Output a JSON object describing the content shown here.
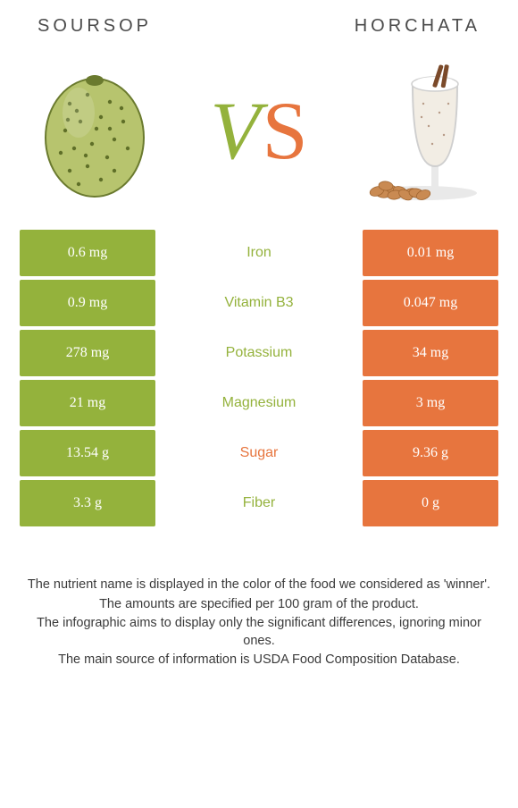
{
  "left_title": "SOURSOP",
  "right_title": "HORCHATA",
  "vs_v": "V",
  "vs_s": "S",
  "colors": {
    "left_bg": "#94b23c",
    "right_bg": "#e7753e",
    "left_text": "#ffffff",
    "right_text": "#ffffff",
    "mid_win_left": "#94b23c",
    "mid_win_right": "#e7753e",
    "v_color": "#94b23c",
    "s_color": "#e7753e",
    "title_color": "#4a4a4a",
    "notes_color": "#3a3a3a"
  },
  "rows": [
    {
      "left": "0.6 mg",
      "label": "Iron",
      "right": "0.01 mg",
      "winner": "left"
    },
    {
      "left": "0.9 mg",
      "label": "Vitamin B3",
      "right": "0.047 mg",
      "winner": "left"
    },
    {
      "left": "278 mg",
      "label": "Potassium",
      "right": "34 mg",
      "winner": "left"
    },
    {
      "left": "21 mg",
      "label": "Magnesium",
      "right": "3 mg",
      "winner": "left"
    },
    {
      "left": "13.54 g",
      "label": "Sugar",
      "right": "9.36 g",
      "winner": "right"
    },
    {
      "left": "3.3 g",
      "label": "Fiber",
      "right": "0 g",
      "winner": "left"
    }
  ],
  "notes": [
    "The nutrient name is displayed in the color of the food we considered as 'winner'.",
    "The amounts are specified per 100 gram of the product.",
    "The infographic aims to display only the significant differences, ignoring minor ones.",
    "The main source of information is USDA Food Composition Database."
  ],
  "svg": {
    "soursop": {
      "body_fill": "#b7c46e",
      "body_stroke": "#6a7a2e",
      "spot_fill": "#5f6f28"
    },
    "horchata": {
      "glass_stroke": "#cfcfcf",
      "drink_fill": "#f2ede4",
      "foam_fill": "#ffffff",
      "foot_fill": "#e9e9e9",
      "cinnamon": "#7b4a2a",
      "almond_fill": "#c98a52",
      "almond_stroke": "#a06530",
      "shadow": "#e9e9e9"
    }
  }
}
